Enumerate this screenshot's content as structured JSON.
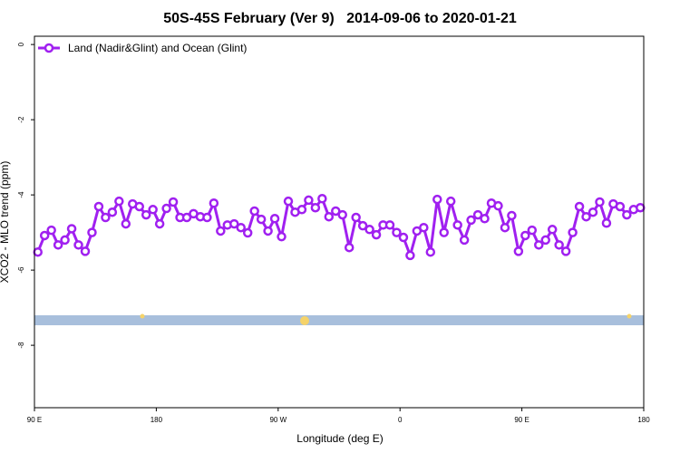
{
  "chart_data": {
    "type": "line",
    "title": "50S-45S February (Ver 9)   2014-09-06 to 2020-01-21",
    "x_label": "Longitude (deg E)",
    "y_label": "XCO2 - MLO trend (ppm)",
    "xlim": [
      90,
      540
    ],
    "ylim": [
      -9.66,
      0.22
    ],
    "xticks": [
      {
        "value": 90,
        "label": "90 E"
      },
      {
        "value": 180,
        "label": "180"
      },
      {
        "value": 270,
        "label": "90 W"
      },
      {
        "value": 360,
        "label": "0"
      },
      {
        "value": 450,
        "label": "90 E"
      },
      {
        "value": 540,
        "label": "180"
      }
    ],
    "yticks": [
      0,
      -2,
      -4,
      -6,
      -8
    ],
    "legend": "top-left",
    "x": [
      92.5,
      97.5,
      102.5,
      107.5,
      112.5,
      117.5,
      122.5,
      127.5,
      132.5,
      137.5,
      142.5,
      147.5,
      152.5,
      157.5,
      162.5,
      167.5,
      172.5,
      177.5,
      182.5,
      187.5,
      192.5,
      197.5,
      202.5,
      207.5,
      212.5,
      217.5,
      222.5,
      227.5,
      232.5,
      237.5,
      242.5,
      247.5,
      252.5,
      257.5,
      262.5,
      267.5,
      272.5,
      277.5,
      282.5,
      287.5,
      292.5,
      297.5,
      302.5,
      307.5,
      312.5,
      317.5,
      322.5,
      327.5,
      332.5,
      337.5,
      342.5,
      347.5,
      352.5,
      357.5,
      362.5,
      367.5,
      372.5,
      377.5,
      382.5,
      387.5,
      392.5,
      397.5,
      402.5,
      407.5,
      412.5,
      417.5,
      422.5,
      427.5,
      432.5,
      437.5,
      442.5,
      447.5,
      452.5,
      457.5,
      462.5,
      467.5,
      472.5,
      477.5,
      482.5,
      487.5,
      492.5,
      497.5,
      502.5,
      507.5,
      512.5,
      517.5,
      522.5,
      527.5,
      532.5,
      537.5
    ],
    "series": [
      {
        "name": "Land (Nadir&Glint) and Ocean (Glint)",
        "color": "#a020f0",
        "values": [
          -5.52,
          -5.08,
          -4.94,
          -5.33,
          -5.2,
          -4.9,
          -5.33,
          -5.5,
          -5.0,
          -4.31,
          -4.6,
          -4.46,
          -4.17,
          -4.77,
          -4.24,
          -4.31,
          -4.53,
          -4.39,
          -4.77,
          -4.36,
          -4.19,
          -4.6,
          -4.6,
          -4.5,
          -4.58,
          -4.6,
          -4.22,
          -4.96,
          -4.8,
          -4.77,
          -4.87,
          -5.01,
          -4.43,
          -4.65,
          -4.96,
          -4.63,
          -5.11,
          -4.17,
          -4.46,
          -4.39,
          -4.14,
          -4.34,
          -4.1,
          -4.58,
          -4.43,
          -4.53,
          -5.4,
          -4.6,
          -4.82,
          -4.92,
          -5.06,
          -4.8,
          -4.8,
          -5.0,
          -5.13,
          -5.61,
          -4.96,
          -4.87,
          -5.52,
          -4.12,
          -5.0,
          -4.17,
          -4.8,
          -5.2,
          -4.67,
          -4.53,
          -4.63,
          -4.22,
          -4.29,
          -4.87,
          -4.55,
          -5.5,
          -5.08,
          -4.94,
          -5.33,
          -5.2,
          -4.92,
          -5.33,
          -5.5,
          -5.0,
          -4.31,
          -4.58,
          -4.46,
          -4.19,
          -4.75,
          -4.24,
          -4.31,
          -4.53,
          -4.39,
          -4.34
        ]
      }
    ]
  }
}
